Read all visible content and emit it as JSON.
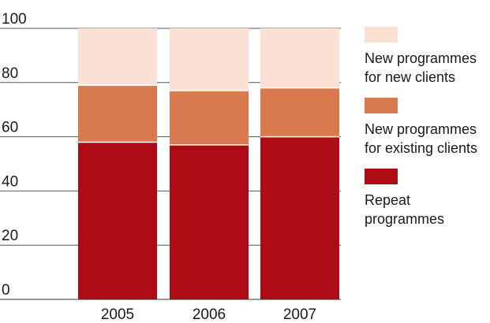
{
  "chart_data": {
    "type": "bar",
    "stacked": true,
    "title": "",
    "xlabel": "",
    "ylabel": "",
    "categories": [
      "2005",
      "2006",
      "2007"
    ],
    "ylim": [
      0,
      100
    ],
    "yticks": [
      0,
      20,
      40,
      60,
      80,
      100
    ],
    "ytick_labels": [
      "0",
      "20",
      "40",
      "60",
      "80",
      "100"
    ],
    "grid": true,
    "legend_position": "right",
    "series": [
      {
        "name": "Repeat programmes",
        "values": [
          58,
          57,
          60
        ],
        "color": "#ae0c14"
      },
      {
        "name": "New programmes for existing clients",
        "values": [
          21,
          20,
          18
        ],
        "color": "#d9794e"
      },
      {
        "name": "New programmes for new clients",
        "values": [
          21,
          23,
          22
        ],
        "color": "#fde0d4"
      }
    ],
    "legend": [
      {
        "label": "New programmes for new clients",
        "color": "#fde0d4"
      },
      {
        "label": "New programmes for existing clients",
        "color": "#d9794e"
      },
      {
        "label": "Repeat programmes",
        "color": "#ae0c14"
      }
    ]
  }
}
